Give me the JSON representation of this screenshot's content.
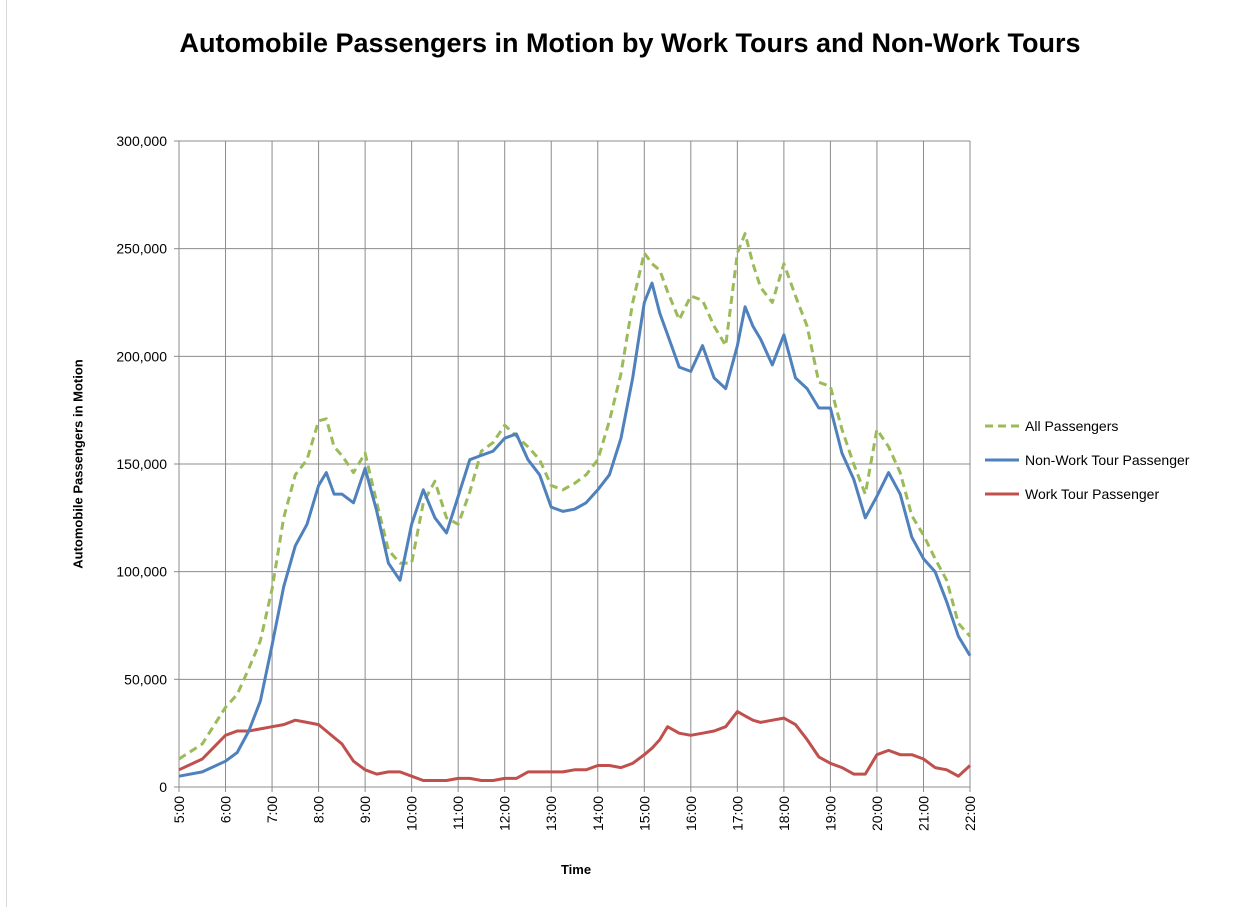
{
  "chart_data": {
    "type": "line",
    "title": "Automobile Passengers in Motion by Work Tours and Non-Work Tours",
    "xlabel": "Time",
    "ylabel": "Automobile Passengers in Motion",
    "ylim": [
      0,
      300000
    ],
    "y_ticks": [
      0,
      50000,
      100000,
      150000,
      200000,
      250000,
      300000
    ],
    "y_tick_labels": [
      "0",
      "50,000",
      "100,000",
      "150,000",
      "200,000",
      "250,000",
      "300,000"
    ],
    "x_range": [
      "5:00",
      "22:00"
    ],
    "x_tick_labels": [
      "5:00",
      "6:00",
      "7:00",
      "8:00",
      "9:00",
      "10:00",
      "11:00",
      "12:00",
      "13:00",
      "14:00",
      "15:00",
      "16:00",
      "17:00",
      "18:00",
      "19:00",
      "20:00",
      "21:00",
      "22:00"
    ],
    "grid": true,
    "legend_position": "right",
    "series": [
      {
        "name": "All Passengers",
        "color": "#9bbb59",
        "style": "dashed",
        "x": [
          "5:00",
          "5:30",
          "6:00",
          "6:15",
          "6:30",
          "6:45",
          "7:00",
          "7:15",
          "7:30",
          "7:45",
          "8:00",
          "8:10",
          "8:20",
          "8:30",
          "8:45",
          "9:00",
          "9:15",
          "9:30",
          "9:45",
          "10:00",
          "10:15",
          "10:30",
          "10:45",
          "11:00",
          "11:15",
          "11:30",
          "11:45",
          "12:00",
          "12:15",
          "12:30",
          "12:45",
          "13:00",
          "13:15",
          "13:30",
          "13:45",
          "14:00",
          "14:15",
          "14:30",
          "14:45",
          "15:00",
          "15:10",
          "15:20",
          "15:30",
          "15:45",
          "16:00",
          "16:15",
          "16:30",
          "16:45",
          "17:00",
          "17:10",
          "17:20",
          "17:30",
          "17:45",
          "18:00",
          "18:15",
          "18:30",
          "18:45",
          "19:00",
          "19:15",
          "19:30",
          "19:45",
          "20:00",
          "20:15",
          "20:30",
          "20:45",
          "21:00",
          "21:15",
          "21:30",
          "21:45",
          "22:00"
        ],
        "values": [
          13000,
          20000,
          37000,
          43000,
          55000,
          68000,
          92000,
          125000,
          145000,
          152000,
          170000,
          171000,
          158000,
          154000,
          146000,
          155000,
          132000,
          110000,
          104000,
          104000,
          132000,
          142000,
          125000,
          122000,
          137000,
          156000,
          160000,
          168000,
          163000,
          158000,
          152000,
          140000,
          138000,
          141000,
          145000,
          152000,
          170000,
          192000,
          225000,
          248000,
          243000,
          240000,
          230000,
          217000,
          228000,
          226000,
          214000,
          205000,
          248000,
          257000,
          243000,
          232000,
          225000,
          243000,
          228000,
          214000,
          188000,
          186000,
          166000,
          150000,
          136000,
          166000,
          158000,
          146000,
          126000,
          117000,
          106000,
          96000,
          76000,
          70000
        ]
      },
      {
        "name": "Non-Work Tour Passenger",
        "color": "#4f81bd",
        "style": "solid",
        "x": [
          "5:00",
          "5:30",
          "6:00",
          "6:15",
          "6:30",
          "6:45",
          "7:00",
          "7:15",
          "7:30",
          "7:45",
          "8:00",
          "8:10",
          "8:20",
          "8:30",
          "8:45",
          "9:00",
          "9:15",
          "9:30",
          "9:45",
          "10:00",
          "10:15",
          "10:30",
          "10:45",
          "11:00",
          "11:15",
          "11:30",
          "11:45",
          "12:00",
          "12:15",
          "12:30",
          "12:45",
          "13:00",
          "13:15",
          "13:30",
          "13:45",
          "14:00",
          "14:15",
          "14:30",
          "14:45",
          "15:00",
          "15:10",
          "15:20",
          "15:30",
          "15:45",
          "16:00",
          "16:15",
          "16:30",
          "16:45",
          "17:00",
          "17:10",
          "17:20",
          "17:30",
          "17:45",
          "18:00",
          "18:15",
          "18:30",
          "18:45",
          "19:00",
          "19:15",
          "19:30",
          "19:45",
          "20:00",
          "20:15",
          "20:30",
          "20:45",
          "21:00",
          "21:15",
          "21:30",
          "21:45",
          "22:00"
        ],
        "values": [
          5000,
          7000,
          12000,
          16000,
          26000,
          40000,
          66000,
          93000,
          112000,
          122000,
          140000,
          146000,
          136000,
          136000,
          132000,
          148000,
          128000,
          104000,
          96000,
          122000,
          138000,
          125000,
          118000,
          135000,
          152000,
          154000,
          156000,
          162000,
          164000,
          152000,
          145000,
          130000,
          128000,
          129000,
          132000,
          138000,
          145000,
          162000,
          190000,
          225000,
          234000,
          220000,
          210000,
          195000,
          193000,
          205000,
          190000,
          185000,
          205000,
          223000,
          214000,
          208000,
          196000,
          210000,
          190000,
          185000,
          176000,
          176000,
          155000,
          143000,
          125000,
          135000,
          146000,
          136000,
          116000,
          106000,
          100000,
          86000,
          70000,
          61000
        ]
      },
      {
        "name": "Work Tour Passenger",
        "color": "#c0504d",
        "style": "solid",
        "x": [
          "5:00",
          "5:30",
          "6:00",
          "6:15",
          "6:30",
          "6:45",
          "7:00",
          "7:15",
          "7:30",
          "7:45",
          "8:00",
          "8:10",
          "8:20",
          "8:30",
          "8:45",
          "9:00",
          "9:15",
          "9:30",
          "9:45",
          "10:00",
          "10:15",
          "10:30",
          "10:45",
          "11:00",
          "11:15",
          "11:30",
          "11:45",
          "12:00",
          "12:15",
          "12:30",
          "12:45",
          "13:00",
          "13:15",
          "13:30",
          "13:45",
          "14:00",
          "14:15",
          "14:30",
          "14:45",
          "15:00",
          "15:10",
          "15:20",
          "15:30",
          "15:45",
          "16:00",
          "16:15",
          "16:30",
          "16:45",
          "17:00",
          "17:10",
          "17:20",
          "17:30",
          "17:45",
          "18:00",
          "18:15",
          "18:30",
          "18:45",
          "19:00",
          "19:15",
          "19:30",
          "19:45",
          "20:00",
          "20:15",
          "20:30",
          "20:45",
          "21:00",
          "21:15",
          "21:30",
          "21:45",
          "22:00"
        ],
        "values": [
          8000,
          13000,
          24000,
          26000,
          26000,
          27000,
          28000,
          29000,
          31000,
          30000,
          29000,
          26000,
          23000,
          20000,
          12000,
          8000,
          6000,
          7000,
          7000,
          5000,
          3000,
          3000,
          3000,
          4000,
          4000,
          3000,
          3000,
          4000,
          4000,
          7000,
          7000,
          7000,
          7000,
          8000,
          8000,
          10000,
          10000,
          9000,
          11000,
          15000,
          18000,
          22000,
          28000,
          25000,
          24000,
          25000,
          26000,
          28000,
          35000,
          33000,
          31000,
          30000,
          31000,
          32000,
          29000,
          22000,
          14000,
          11000,
          9000,
          6000,
          6000,
          15000,
          17000,
          15000,
          15000,
          13000,
          9000,
          8000,
          5000,
          10000
        ]
      }
    ]
  }
}
